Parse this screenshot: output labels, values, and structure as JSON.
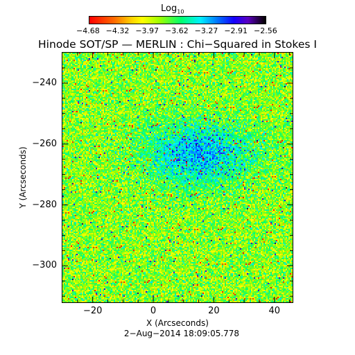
{
  "colorbar": {
    "title": "Log",
    "title_subscript": "10",
    "tick_labels": [
      "−4.68",
      "−4.32",
      "−3.97",
      "−3.62",
      "−3.27",
      "−2.91",
      "−2.56"
    ]
  },
  "chart_data": {
    "type": "heatmap",
    "title": "Hinode SOT/SP — MERLIN : Chi−Squared in Stokes I",
    "xlabel": "X (Arcseconds)",
    "ylabel": "Y (Arcseconds)",
    "xlim": [
      -30,
      46
    ],
    "ylim": [
      -312,
      -230
    ],
    "x_ticks": [
      -20,
      0,
      20,
      40
    ],
    "x_tick_labels": [
      "−20",
      "0",
      "20",
      "40"
    ],
    "y_ticks": [
      -240,
      -260,
      -280,
      -300
    ],
    "y_tick_labels": [
      "−240",
      "−260",
      "−280",
      "−300"
    ],
    "color_scale": {
      "min": -4.68,
      "max": -2.56,
      "scale": "log10",
      "colormap": "rainbow red-to-black"
    },
    "dominant_level": -3.8,
    "feature": {
      "description": "elevated values (blue) near center",
      "x": 15,
      "y": -263
    },
    "timestamp": "2−Aug−2014 18:09:05.778"
  }
}
